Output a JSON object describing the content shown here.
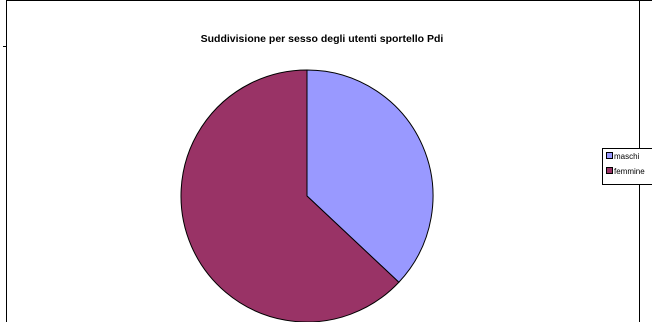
{
  "chart_data": {
    "type": "pie",
    "title": "Suddivisione per sesso degli utenti sportello Pdi",
    "categories": [
      "maschi",
      "femmine"
    ],
    "values": [
      37,
      63
    ],
    "colors": [
      "#9999ff",
      "#993366"
    ],
    "legend_position": "right",
    "start_angle": "top",
    "direction": "clockwise"
  }
}
